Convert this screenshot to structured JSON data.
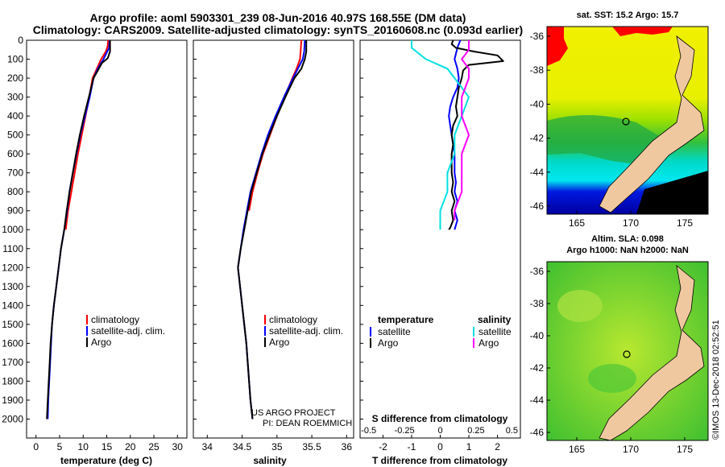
{
  "header": {
    "title_line1": "Argo profile: aoml 5903301_239 08-Jun-2016 40.97S 168.55E (DM data)",
    "title_line2": "Climatology: CARS2009. Satellite-adjusted climatology: synTS_20160608.nc (0.093d earlier)"
  },
  "map_top": {
    "title": "sat. SST: 15.2 Argo: 15.7",
    "lat_ticks": [
      "-36",
      "-38",
      "-40",
      "-42",
      "-44",
      "-46"
    ],
    "lon_ticks": [
      "165",
      "170",
      "175"
    ]
  },
  "map_bottom": {
    "title_line1": "Altim. SLA: 0.098",
    "title_line2": "Argo h1000: NaN h2000: NaN",
    "lat_ticks": [
      "-36",
      "-38",
      "-40",
      "-42",
      "-44",
      "-46"
    ],
    "lon_ticks": [
      "165",
      "170",
      "175"
    ]
  },
  "credit": {
    "project_line1": "US ARGO PROJECT",
    "project_line2": "PI: DEAN ROEMMICH",
    "stamp": "©IMOS 13-Dec-2018 02:52:51"
  },
  "colors": {
    "climatology": "#ff0000",
    "satellite": "#0000ff",
    "argo": "#000000",
    "sal_satellite": "#00e0e0",
    "sal_argo": "#ff00ff"
  },
  "chart_data": [
    {
      "type": "line",
      "name": "temperature",
      "xlabel": "temperature (deg C)",
      "ylabel": "",
      "xlim": [
        -2,
        32
      ],
      "ylim": [
        0,
        2100
      ],
      "x_ticks": [
        "0",
        "5",
        "10",
        "15",
        "20",
        "25",
        "30"
      ],
      "y_ticks": [
        "0",
        "100",
        "200",
        "300",
        "400",
        "500",
        "600",
        "700",
        "800",
        "900",
        "1000",
        "1100",
        "1200",
        "1300",
        "1400",
        "1500",
        "1600",
        "1700",
        "1800",
        "1900",
        "2000"
      ],
      "legend": {
        "placement": "bottom-right",
        "entries": [
          "climatology",
          "satellite-adj. clim.",
          "Argo"
        ]
      },
      "series": [
        {
          "name": "climatology",
          "points": [
            [
              15.3,
              0
            ],
            [
              15.2,
              30
            ],
            [
              14.8,
              60
            ],
            [
              13.8,
              100
            ],
            [
              12.9,
              150
            ],
            [
              12.0,
              200
            ],
            [
              11.3,
              300
            ],
            [
              10.5,
              400
            ],
            [
              9.7,
              500
            ],
            [
              8.9,
              600
            ],
            [
              8.2,
              700
            ],
            [
              7.5,
              800
            ],
            [
              6.8,
              900
            ],
            [
              6.3,
              1000
            ]
          ]
        },
        {
          "name": "satellite",
          "points": [
            [
              15.6,
              0
            ],
            [
              15.5,
              40
            ],
            [
              14.3,
              100
            ],
            [
              13.1,
              150
            ],
            [
              12.2,
              200
            ],
            [
              11.4,
              300
            ],
            [
              10.4,
              400
            ],
            [
              9.4,
              500
            ],
            [
              8.6,
              600
            ],
            [
              7.8,
              700
            ],
            [
              7.1,
              800
            ],
            [
              6.6,
              900
            ],
            [
              6.0,
              1000
            ],
            [
              5.3,
              1100
            ],
            [
              4.8,
              1200
            ],
            [
              4.3,
              1300
            ],
            [
              3.8,
              1400
            ],
            [
              3.4,
              1500
            ],
            [
              3.2,
              1600
            ],
            [
              3.0,
              1700
            ],
            [
              2.8,
              1800
            ],
            [
              2.6,
              1900
            ],
            [
              2.5,
              2000
            ]
          ]
        },
        {
          "name": "Argo",
          "points": [
            [
              15.7,
              0
            ],
            [
              15.7,
              60
            ],
            [
              15.2,
              95
            ],
            [
              14.0,
              120
            ],
            [
              13.1,
              160
            ],
            [
              12.2,
              200
            ],
            [
              11.2,
              300
            ],
            [
              10.2,
              400
            ],
            [
              9.3,
              500
            ],
            [
              8.5,
              600
            ],
            [
              7.8,
              700
            ],
            [
              7.1,
              800
            ],
            [
              6.5,
              900
            ],
            [
              6.0,
              1000
            ],
            [
              5.3,
              1100
            ],
            [
              4.8,
              1200
            ],
            [
              4.3,
              1300
            ],
            [
              3.8,
              1400
            ],
            [
              3.4,
              1500
            ],
            [
              3.1,
              1600
            ],
            [
              2.9,
              1700
            ],
            [
              2.7,
              1800
            ],
            [
              2.5,
              1900
            ],
            [
              2.3,
              2000
            ]
          ]
        }
      ]
    },
    {
      "type": "line",
      "name": "salinity",
      "xlabel": "salinity",
      "xlim": [
        33.8,
        36.1
      ],
      "ylim": [
        0,
        2100
      ],
      "x_ticks": [
        "34",
        "34.5",
        "35",
        "35.5",
        "36"
      ],
      "legend": {
        "placement": "bottom-right",
        "entries": [
          "climatology",
          "satellite-adj. clim.",
          "Argo"
        ]
      },
      "series": [
        {
          "name": "climatology",
          "points": [
            [
              35.35,
              0
            ],
            [
              35.34,
              60
            ],
            [
              35.33,
              100
            ],
            [
              35.28,
              150
            ],
            [
              35.22,
              200
            ],
            [
              35.11,
              300
            ],
            [
              35.0,
              400
            ],
            [
              34.9,
              500
            ],
            [
              34.8,
              600
            ],
            [
              34.72,
              700
            ],
            [
              34.65,
              800
            ],
            [
              34.6,
              900
            ]
          ]
        },
        {
          "name": "satellite",
          "points": [
            [
              35.4,
              0
            ],
            [
              35.39,
              60
            ],
            [
              35.37,
              100
            ],
            [
              35.3,
              150
            ],
            [
              35.23,
              200
            ],
            [
              35.1,
              300
            ],
            [
              34.98,
              400
            ],
            [
              34.87,
              500
            ],
            [
              34.78,
              600
            ],
            [
              34.7,
              700
            ],
            [
              34.62,
              800
            ],
            [
              34.57,
              900
            ],
            [
              34.52,
              1000
            ],
            [
              34.48,
              1100
            ],
            [
              34.44,
              1200
            ],
            [
              34.47,
              1300
            ],
            [
              34.5,
              1400
            ],
            [
              34.53,
              1500
            ],
            [
              34.56,
              1600
            ],
            [
              34.58,
              1700
            ],
            [
              34.6,
              1800
            ],
            [
              34.62,
              1900
            ],
            [
              34.65,
              2000
            ]
          ]
        },
        {
          "name": "Argo",
          "points": [
            [
              35.42,
              0
            ],
            [
              35.42,
              60
            ],
            [
              35.4,
              100
            ],
            [
              35.35,
              150
            ],
            [
              35.25,
              200
            ],
            [
              35.12,
              300
            ],
            [
              35.0,
              400
            ],
            [
              34.89,
              500
            ],
            [
              34.79,
              600
            ],
            [
              34.71,
              700
            ],
            [
              34.63,
              800
            ],
            [
              34.58,
              900
            ],
            [
              34.53,
              1000
            ],
            [
              34.48,
              1100
            ],
            [
              34.44,
              1200
            ],
            [
              34.47,
              1300
            ],
            [
              34.5,
              1400
            ],
            [
              34.53,
              1500
            ],
            [
              34.56,
              1600
            ],
            [
              34.58,
              1700
            ],
            [
              34.6,
              1800
            ],
            [
              34.62,
              1900
            ],
            [
              34.65,
              2000
            ]
          ]
        }
      ]
    },
    {
      "type": "line",
      "name": "difference",
      "xlabel": "T difference from climatology",
      "xlabel_top": "S difference from climatology",
      "xlim": [
        -2.8,
        2.8
      ],
      "ylim": [
        0,
        2100
      ],
      "x_ticks": [
        "-2",
        "-1",
        "0",
        "1",
        "2"
      ],
      "x_ticks_salinity": [
        "-0.5",
        "-0.25",
        "0",
        "0.25",
        "0.5"
      ],
      "legend": {
        "temperature_title": "temperature",
        "temperature_entries": [
          "satellite",
          "Argo"
        ],
        "salinity_title": "salinity",
        "salinity_entries": [
          "satellite",
          "Argo"
        ]
      },
      "series": [
        {
          "name": "temperature satellite",
          "points": [
            [
              0.7,
              0
            ],
            [
              0.6,
              40
            ],
            [
              0.5,
              100
            ],
            [
              0.6,
              150
            ],
            [
              0.65,
              200
            ],
            [
              0.6,
              250
            ],
            [
              0.45,
              300
            ],
            [
              0.35,
              350
            ],
            [
              0.3,
              400
            ],
            [
              0.35,
              450
            ],
            [
              0.4,
              500
            ],
            [
              0.45,
              550
            ],
            [
              0.5,
              600
            ],
            [
              0.5,
              700
            ],
            [
              0.55,
              750
            ],
            [
              0.5,
              800
            ],
            [
              0.6,
              850
            ],
            [
              0.5,
              900
            ],
            [
              0.6,
              950
            ],
            [
              0.5,
              1000
            ]
          ]
        },
        {
          "name": "temperature Argo",
          "points": [
            [
              0.45,
              0
            ],
            [
              0.4,
              20
            ],
            [
              0.55,
              40
            ],
            [
              1.2,
              60
            ],
            [
              2.0,
              80
            ],
            [
              2.2,
              110
            ],
            [
              1.6,
              120
            ],
            [
              1.0,
              130
            ],
            [
              0.8,
              160
            ],
            [
              0.75,
              200
            ],
            [
              0.65,
              250
            ],
            [
              0.6,
              300
            ],
            [
              0.55,
              350
            ],
            [
              0.6,
              400
            ],
            [
              0.45,
              450
            ],
            [
              0.4,
              500
            ],
            [
              0.45,
              550
            ],
            [
              0.4,
              600
            ],
            [
              0.4,
              700
            ],
            [
              0.45,
              750
            ],
            [
              0.4,
              800
            ],
            [
              0.5,
              850
            ],
            [
              0.4,
              900
            ],
            [
              0.45,
              950
            ],
            [
              0.35,
              990
            ],
            [
              0.3,
              1000
            ]
          ]
        },
        {
          "name": "salinity satellite",
          "points": [
            [
              -0.2,
              0
            ],
            [
              -0.2,
              40
            ],
            [
              -0.1,
              100
            ],
            [
              0.05,
              150
            ],
            [
              0.1,
              200
            ],
            [
              0.15,
              250
            ],
            [
              0.2,
              300
            ],
            [
              0.15,
              400
            ],
            [
              0.1,
              500
            ],
            [
              0.1,
              600
            ],
            [
              0.05,
              700
            ],
            [
              0.05,
              800
            ],
            [
              0.0,
              900
            ],
            [
              0.0,
              1000
            ]
          ]
        },
        {
          "name": "salinity Argo",
          "points": [
            [
              0.2,
              0
            ],
            [
              0.2,
              50
            ],
            [
              0.15,
              100
            ],
            [
              0.2,
              150
            ],
            [
              0.2,
              200
            ],
            [
              0.15,
              300
            ],
            [
              0.15,
              400
            ],
            [
              0.2,
              500
            ],
            [
              0.15,
              600
            ],
            [
              0.15,
              700
            ],
            [
              0.15,
              800
            ],
            [
              0.1,
              900
            ],
            [
              0.1,
              950
            ]
          ]
        }
      ]
    }
  ]
}
